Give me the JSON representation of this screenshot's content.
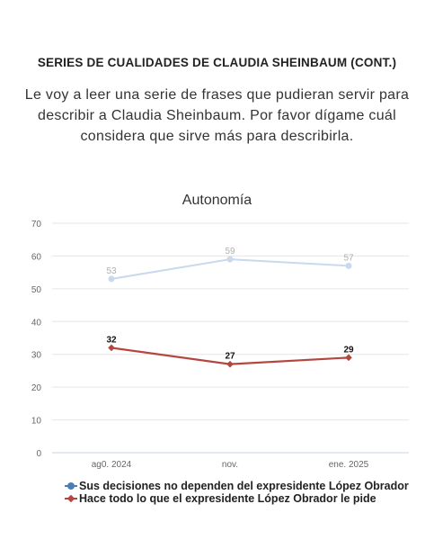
{
  "header": {
    "title": "SERIES DE CUALIDADES DE CLAUDIA SHEINBAUM (CONT.)",
    "question": "Le voy a leer una serie de frases que pudieran servir para describir a Claudia Sheinbaum. Por favor dígame cuál considera que sirve más para describirla."
  },
  "chart_data": {
    "type": "line",
    "title": "Autonomía",
    "xlabel": "",
    "ylabel": "",
    "categories": [
      "ag0. 2024",
      "nov.",
      "ene. 2025"
    ],
    "ylim": [
      0,
      70
    ],
    "yticks": [
      0,
      10,
      20,
      30,
      40,
      50,
      60,
      70
    ],
    "grid": true,
    "legend_position": "bottom",
    "series": [
      {
        "name": "Sus decisiones no dependen del expresidente López Obrador",
        "values": [
          53,
          59,
          57
        ],
        "color": "#c9d9ee",
        "legend_color": "#4a7fb5",
        "marker": "circle",
        "label_color": "#b0b0b0"
      },
      {
        "name": "Hace todo lo que el expresidente López Obrador le pide",
        "values": [
          32,
          27,
          29
        ],
        "color": "#b5463f",
        "legend_color": "#b5463f",
        "marker": "diamond",
        "label_color": "#111111"
      }
    ]
  }
}
